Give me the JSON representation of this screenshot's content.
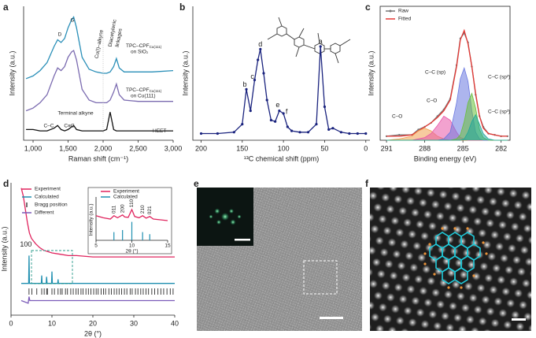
{
  "chart_data": [
    {
      "type": "line",
      "panel_label": "a",
      "x_label": "Raman shift (cm⁻¹)",
      "y_label": "Intensity (a.u.)",
      "xlim": [
        865,
        3000
      ],
      "ylim": [
        0,
        100
      ],
      "xticks": [
        {
          "value": 1000,
          "label": "1,000"
        },
        {
          "value": 1500,
          "label": "1,500"
        },
        {
          "value": 2000,
          "label": "2,000"
        },
        {
          "value": 2500,
          "label": "2,500"
        },
        {
          "value": 3000,
          "label": "3,000"
        }
      ],
      "x": [
        900,
        1000,
        1100,
        1200,
        1300,
        1350,
        1400,
        1450,
        1500,
        1550,
        1580,
        1620,
        1700,
        1800,
        1900,
        2000,
        2050,
        2100,
        2150,
        2190,
        2230,
        2300,
        2500,
        2700,
        3000
      ],
      "series": [
        {
          "name": "TPC–CPF",
          "name_sub": "Cu(111)",
          "name_line2": "on SiO₂",
          "color": "#2a8fb8",
          "values": [
            46,
            48,
            52,
            58,
            70,
            75,
            73,
            76,
            84,
            90,
            92,
            84,
            62,
            53,
            51,
            50,
            50,
            51,
            55,
            61,
            54,
            51,
            51,
            51,
            52
          ]
        },
        {
          "name": "TPC–CPF",
          "name_sub": "Cu(111)",
          "name_line2": "on Cu(111)",
          "color": "#7b6bb0",
          "values": [
            22,
            24,
            28,
            34,
            48,
            54,
            52,
            55,
            62,
            66,
            67,
            60,
            38,
            30,
            28,
            28,
            28,
            30,
            36,
            42,
            34,
            30,
            29,
            29,
            29
          ]
        },
        {
          "name": "HEET",
          "color": "#111111",
          "values": [
            8,
            8,
            7,
            7,
            9,
            11,
            8,
            7,
            8,
            10,
            11,
            8,
            7,
            7,
            7,
            7,
            8,
            21,
            8,
            7,
            7,
            7,
            7,
            7,
            7
          ]
        }
      ],
      "annotations": [
        "D",
        "G",
        "Cu(I)–alkyne",
        "Diacetylenic",
        "linkages",
        "Terminal alkyne",
        "C–C",
        "C≡C"
      ]
    },
    {
      "type": "line",
      "panel_label": "b",
      "markers": true,
      "x_label": "¹³C chemical shift (ppm)",
      "y_label": "Intensity (a.u.)",
      "xlim": [
        210,
        -5
      ],
      "ylim": [
        0,
        100
      ],
      "xticks": [
        200,
        150,
        100,
        50,
        0
      ],
      "x": [
        200,
        180,
        160,
        150,
        145,
        140,
        135,
        131,
        128,
        124,
        120,
        115,
        110,
        105,
        100,
        95,
        90,
        80,
        70,
        60,
        55,
        50,
        45,
        40,
        30,
        20,
        10,
        0
      ],
      "series": [
        {
          "color": "#1a237e",
          "values": [
            5,
            5,
            6,
            12,
            38,
            22,
            45,
            60,
            68,
            50,
            30,
            15,
            14,
            22,
            20,
            10,
            7,
            6,
            6,
            12,
            70,
            25,
            8,
            9,
            6,
            5,
            5,
            5
          ]
        }
      ],
      "peak_labels": [
        {
          "label": "a",
          "x": 55
        },
        {
          "label": "b",
          "x": 145
        },
        {
          "label": "c",
          "x": 133
        },
        {
          "label": "d",
          "x": 128
        },
        {
          "label": "e",
          "x": 105
        },
        {
          "label": "f",
          "x": 100
        }
      ]
    },
    {
      "type": "line",
      "panel_label": "c",
      "x_label": "Binding energy (eV)",
      "y_label": "Intensity (a.u.)",
      "legend": "top-left",
      "xlim": [
        291.5,
        281.3
      ],
      "ylim": [
        0,
        100
      ],
      "xticks": [
        291,
        288,
        285,
        282
      ],
      "x": [
        291,
        290,
        289,
        288.5,
        288,
        287.5,
        287,
        286.5,
        286,
        285.5,
        285.2,
        284.9,
        284.6,
        284.3,
        284,
        283.7,
        283.4,
        283,
        282.5,
        282,
        281.5
      ],
      "series": [
        {
          "name": "Raw",
          "color": "#777777",
          "in_legend": true,
          "markers": true,
          "values": [
            3,
            4,
            4,
            8,
            10,
            13,
            18,
            23,
            31,
            56,
            76,
            80,
            73,
            55,
            34,
            18,
            10,
            5,
            4,
            3,
            3
          ]
        },
        {
          "name": "Fitted",
          "color": "#e53935",
          "in_legend": true,
          "values": [
            3,
            3,
            4,
            7,
            10,
            13,
            17,
            22,
            30,
            55,
            75,
            82,
            72,
            55,
            35,
            18,
            9,
            5,
            4,
            3,
            3
          ]
        },
        {
          "name": "C–O",
          "color": "#f0a050",
          "fill": true,
          "values": [
            0,
            1,
            3,
            7,
            9,
            7,
            3,
            1,
            0,
            0,
            0,
            0,
            0,
            0,
            0,
            0,
            0,
            0,
            0,
            0,
            0
          ]
        },
        {
          "name": "C–O",
          "color": "#e855a8",
          "fill": true,
          "values": [
            0,
            0,
            0,
            1,
            2,
            5,
            11,
            18,
            15,
            6,
            2,
            1,
            0,
            0,
            0,
            0,
            0,
            0,
            0,
            0,
            0
          ]
        },
        {
          "name": "C–C (sp)",
          "color": "#6a78e0",
          "fill": true,
          "values": [
            0,
            0,
            0,
            0,
            0,
            0,
            0,
            1,
            6,
            28,
            46,
            54,
            44,
            22,
            6,
            1,
            0,
            0,
            0,
            0,
            0
          ]
        },
        {
          "name": "C–C (sp²)",
          "color": "#6abf3a",
          "fill": true,
          "values": [
            0,
            0,
            0,
            0,
            0,
            0,
            0,
            0,
            0,
            1,
            4,
            14,
            28,
            35,
            24,
            8,
            2,
            0,
            0,
            0,
            0
          ]
        },
        {
          "name": "C–C (sp³)",
          "color": "#1fa89a",
          "fill": true,
          "values": [
            0,
            0,
            0,
            0,
            0,
            0,
            0,
            0,
            0,
            0,
            0,
            1,
            6,
            14,
            19,
            12,
            5,
            1,
            0,
            0,
            0
          ]
        }
      ]
    },
    {
      "type": "line",
      "panel_label": "d",
      "x_label": "2θ (°)",
      "y_label": "Intensity (a.u.)",
      "legend": "top-left",
      "xlim": [
        0,
        40
      ],
      "ylim": [
        0,
        100
      ],
      "xticks": [
        0,
        10,
        20,
        30,
        40
      ],
      "series": [
        {
          "name": "Experiment",
          "color": "#e0245e",
          "x": [
            2.5,
            3,
            3.5,
            4,
            4.5,
            5,
            6,
            7,
            8,
            10,
            12,
            14,
            16,
            20,
            25,
            30,
            35,
            40
          ],
          "values": [
            96,
            90,
            80,
            70,
            62,
            58,
            54,
            51,
            49,
            47,
            46,
            45,
            45,
            44,
            44,
            44,
            44,
            44
          ]
        },
        {
          "name": "Calculated",
          "color": "#1f8fb0",
          "x": [
            2.5,
            4.3,
            4.4,
            4.5,
            7.4,
            7.5,
            7.6,
            8.6,
            8.7,
            8.8,
            9.9,
            10,
            10.1,
            11.4,
            11.5,
            11.6,
            40
          ],
          "values": [
            24,
            24,
            45,
            24,
            24,
            30,
            24,
            24,
            29,
            24,
            24,
            33,
            24,
            24,
            27,
            24,
            24
          ]
        },
        {
          "name": "Bragg position",
          "color": "#111111",
          "type": "ticks",
          "x": [
            4.4,
            5.1,
            6.3,
            7.5,
            8.1,
            8.7,
            8.9,
            10.0,
            10.6,
            11.5,
            12.1,
            12.5,
            13.3,
            13.8,
            14.6,
            15.2,
            15.9,
            16.4,
            17.1,
            17.6,
            18.3,
            18.9,
            19.5,
            20.2,
            20.8,
            21.3,
            22.0,
            22.6,
            23.1,
            23.9,
            24.5,
            25.2,
            25.8,
            26.4,
            27.0,
            27.7,
            28.3,
            29.1,
            29.6,
            30.4,
            31.0,
            31.7,
            32.3,
            33.0,
            33.6,
            34.4,
            35.1,
            35.9,
            36.6,
            37.3,
            38.1,
            38.9,
            39.6
          ]
        },
        {
          "name": "Different",
          "color": "#7b5bb8",
          "x": [
            2.5,
            4.2,
            4.4,
            4.6,
            40
          ],
          "values": [
            11,
            9,
            14,
            11,
            11
          ]
        }
      ],
      "peak_labels": [
        {
          "label": "100",
          "x": 4.4
        }
      ]
    },
    {
      "type": "line",
      "inset_of": "d",
      "x_label": "2θ (°)",
      "y_label": "Intensity (a.u.)",
      "legend": "top-left",
      "xlim": [
        5,
        15
      ],
      "ylim": [
        0,
        100
      ],
      "xticks": [
        5,
        10,
        15
      ],
      "series": [
        {
          "name": "Experiment",
          "color": "#e0245e",
          "x": [
            5,
            6,
            7,
            7.5,
            8,
            8.7,
            9,
            9.5,
            10,
            10.4,
            11,
            11.5,
            12,
            12.5,
            13,
            14,
            15
          ],
          "values": [
            60,
            55,
            52,
            60,
            55,
            62,
            57,
            56,
            75,
            58,
            55,
            60,
            54,
            58,
            52,
            50,
            48
          ]
        },
        {
          "name": "Calculated",
          "color": "#1f8fb0",
          "type": "sticks",
          "x": [
            7.5,
            8.7,
            10,
            11.5,
            12.5
          ],
          "values": [
            20,
            25,
            45,
            20,
            15
          ]
        }
      ],
      "peak_labels": [
        {
          "label": "011",
          "x": 7.5
        },
        {
          "label": "200",
          "x": 8.7
        },
        {
          "label": "110",
          "x": 10
        },
        {
          "label": "210",
          "x": 11.5
        },
        {
          "label": "021",
          "x": 12.5
        }
      ]
    }
  ],
  "images": [
    {
      "panel_label": "e"
    },
    {
      "panel_label": "f"
    }
  ]
}
